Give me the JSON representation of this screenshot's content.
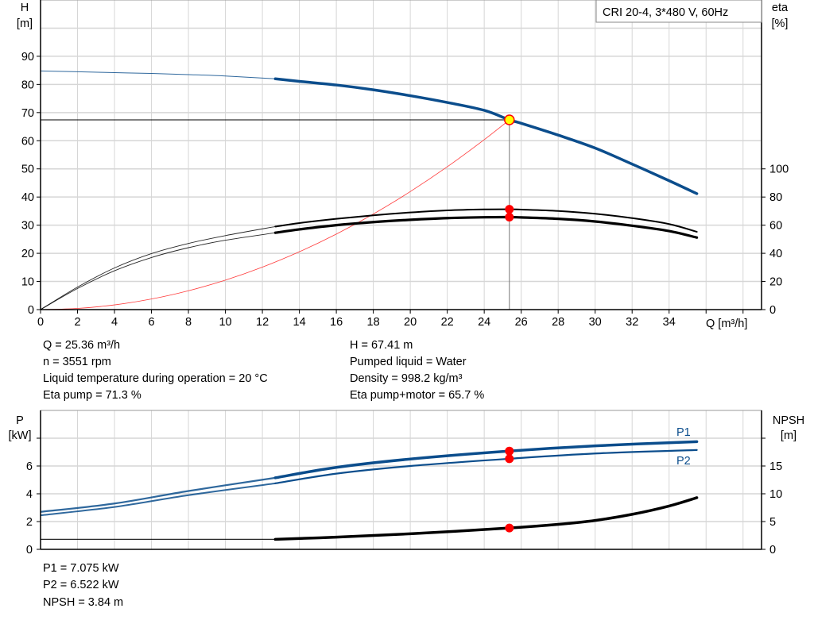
{
  "chart_data": [
    {
      "type": "line",
      "title": "CRI 20-4, 3*480 V, 60Hz",
      "xlabel": "Q [m³/h]",
      "ylabel_left": "H",
      "ylabel_left_unit": "[m]",
      "ylabel_right": "eta",
      "ylabel_right_unit": "[%]",
      "xlim": [
        0,
        39
      ],
      "ylim_left": [
        0,
        110
      ],
      "ylim_right": [
        0,
        220
      ],
      "x_ticks": [
        "0",
        "2",
        "4",
        "6",
        "8",
        "10",
        "12",
        "14",
        "16",
        "18",
        "20",
        "22",
        "24",
        "26",
        "28",
        "30",
        "32",
        "34"
      ],
      "y_left_ticks": [
        "0",
        "10",
        "20",
        "30",
        "40",
        "50",
        "60",
        "70",
        "80",
        "90"
      ],
      "y_right_ticks": [
        "0",
        "20",
        "40",
        "60",
        "80",
        "100"
      ],
      "grid": true,
      "thick_from_q": 12.7,
      "series": [
        {
          "key": "H",
          "axis": "left",
          "color": "#0b4d8c",
          "x": [
            0,
            2,
            4,
            6,
            8,
            10,
            12.7,
            14,
            16,
            18,
            20,
            22,
            24,
            25.36,
            26,
            28,
            30,
            32,
            34,
            35.5
          ],
          "values": [
            84.8,
            84.5,
            84.2,
            83.9,
            83.5,
            83.0,
            82.0,
            81.1,
            79.8,
            78.1,
            76.0,
            73.6,
            70.8,
            67.41,
            66.2,
            62.0,
            57.4,
            51.7,
            45.8,
            41.2
          ]
        },
        {
          "key": "eta_pump",
          "axis": "right",
          "color": "#000000",
          "x": [
            0,
            2,
            4,
            6,
            8,
            10,
            12.7,
            14,
            16,
            18,
            20,
            22,
            24,
            25.36,
            26,
            28,
            30,
            32,
            34,
            35.5
          ],
          "values": [
            0,
            16,
            29.6,
            39.8,
            47,
            52.6,
            59,
            61.5,
            64.5,
            67,
            69,
            70.5,
            71.2,
            71.3,
            71.1,
            70.1,
            68.1,
            65,
            60.8,
            55.3
          ]
        },
        {
          "key": "eta_pump_motor",
          "axis": "right",
          "color": "#000000",
          "x": [
            0,
            2,
            4,
            6,
            8,
            10,
            12.7,
            14,
            16,
            18,
            20,
            22,
            24,
            25.36,
            26,
            28,
            30,
            32,
            34,
            35.5
          ],
          "values": [
            0,
            15,
            27.6,
            37,
            44,
            49.3,
            54.6,
            57,
            60,
            62.2,
            63.8,
            65,
            65.6,
            65.7,
            65.5,
            64.5,
            62.6,
            59.6,
            55.8,
            51.2
          ]
        },
        {
          "key": "system",
          "axis": "left",
          "color": "#ff3b3b",
          "x": [
            0,
            2,
            4,
            6,
            8,
            10,
            12,
            14,
            16,
            18,
            20,
            22,
            24,
            25.36
          ],
          "values": [
            0,
            0.42,
            1.68,
            3.77,
            6.71,
            10.48,
            15.09,
            20.55,
            26.84,
            33.96,
            41.93,
            50.74,
            60.38,
            67.41
          ]
        }
      ],
      "duty_point": {
        "Q": 25.36,
        "H": 67.41,
        "eta_pump": 71.3,
        "eta_pump_motor": 65.7
      },
      "colors": {
        "duty_point_fill": "#ffff00",
        "duty_point_stroke": "#ff0000",
        "marker": "#ff0000",
        "grid": "#d6d6d6"
      }
    },
    {
      "type": "line",
      "ylabel_left": "P",
      "ylabel_left_unit": "[kW]",
      "ylabel_right": "NPSH",
      "ylabel_right_unit": "[m]",
      "xlim": [
        0,
        39
      ],
      "ylim_left": [
        0,
        10
      ],
      "ylim_right": [
        0,
        25
      ],
      "y_left_ticks": [
        "0",
        "2",
        "4",
        "6"
      ],
      "y_right_ticks": [
        "0",
        "5",
        "10",
        "15"
      ],
      "grid": true,
      "thick_from_q": 12.7,
      "series": [
        {
          "key": "P1",
          "name": "P1",
          "axis": "left",
          "color": "#0b4d8c",
          "x": [
            0,
            4,
            8,
            12.7,
            16,
            20,
            25.36,
            30,
            35.5
          ],
          "values": [
            2.7,
            3.3,
            4.2,
            5.15,
            5.9,
            6.5,
            7.075,
            7.45,
            7.75
          ]
        },
        {
          "key": "P2",
          "name": "P2",
          "axis": "left",
          "color": "#0b4d8c",
          "x": [
            0,
            4,
            8,
            12.7,
            16,
            20,
            25.36,
            30,
            35.5
          ],
          "values": [
            2.45,
            3.05,
            3.9,
            4.75,
            5.45,
            6.0,
            6.522,
            6.9,
            7.15
          ]
        },
        {
          "key": "NPSH",
          "axis": "right",
          "color": "#000000",
          "x": [
            0,
            6,
            12.7,
            16,
            20,
            25.36,
            28,
            30,
            32,
            34,
            35.5
          ],
          "values": [
            1.8,
            1.8,
            1.8,
            2.2,
            2.8,
            3.84,
            4.5,
            5.2,
            6.3,
            7.8,
            9.3
          ]
        }
      ],
      "duty_point": {
        "Q": 25.36,
        "P1": 7.075,
        "P2": 6.522,
        "NPSH": 3.84
      }
    }
  ],
  "info_top": {
    "left": [
      "Q = 25.36 m³/h",
      "n = 3551 rpm",
      "Liquid temperature during operation = 20 °C",
      "Eta pump = 71.3 %"
    ],
    "right": [
      "H = 67.41 m",
      "Pumped liquid = Water",
      "Density = 998.2 kg/m³",
      "Eta pump+motor = 65.7 %"
    ]
  },
  "info_bottom": [
    "P1 = 7.075 kW",
    "P2 = 6.522 kW",
    "NPSH = 3.84 m"
  ]
}
